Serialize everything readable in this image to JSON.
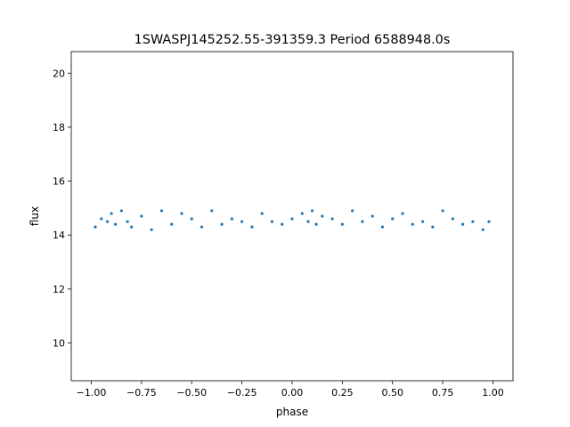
{
  "chart_data": {
    "type": "scatter",
    "title": "1SWASPJ145252.55-391359.3 Period 6588948.0s",
    "xlabel": "phase",
    "ylabel": "flux",
    "xlim": [
      -1.1,
      1.1
    ],
    "ylim": [
      8.6,
      20.8
    ],
    "xticks": [
      -1.0,
      -0.75,
      -0.5,
      -0.25,
      0.0,
      0.25,
      0.5,
      0.75,
      1.0
    ],
    "xtick_labels": [
      "−1.00",
      "−0.75",
      "−0.50",
      "−0.25",
      "0.00",
      "0.25",
      "0.50",
      "0.75",
      "1.00"
    ],
    "yticks": [
      10,
      12,
      14,
      16,
      18,
      20
    ],
    "ytick_labels": [
      "10",
      "12",
      "14",
      "16",
      "18",
      "20"
    ],
    "grid": false,
    "marker_color": "#1f77b4",
    "series": [
      {
        "x": [
          -0.98,
          -0.95,
          -0.92,
          -0.9,
          -0.88,
          -0.85,
          -0.82,
          -0.8,
          -0.75,
          -0.7,
          -0.65,
          -0.6,
          -0.55,
          -0.5,
          -0.45,
          -0.4,
          -0.35,
          -0.3,
          -0.25,
          -0.2,
          -0.15,
          -0.1,
          -0.05,
          0.0,
          0.05,
          0.08,
          0.1,
          0.12,
          0.15,
          0.2,
          0.25,
          0.3,
          0.35,
          0.4,
          0.45,
          0.5,
          0.55,
          0.6,
          0.65,
          0.7,
          0.75,
          0.8,
          0.85,
          0.9,
          0.95,
          0.98
        ],
        "y": [
          14.3,
          14.6,
          14.5,
          14.8,
          14.4,
          14.9,
          14.5,
          14.3,
          14.7,
          14.2,
          14.9,
          14.4,
          14.8,
          14.6,
          14.3,
          14.9,
          14.4,
          14.6,
          14.5,
          14.3,
          14.8,
          14.5,
          14.4,
          14.6,
          14.8,
          14.5,
          14.9,
          14.4,
          14.7,
          14.6,
          14.4,
          14.9,
          14.5,
          14.7,
          14.3,
          14.6,
          14.8,
          14.4,
          14.5,
          14.3,
          14.9,
          14.6,
          14.4,
          14.5,
          14.2,
          14.5
        ]
      }
    ]
  }
}
